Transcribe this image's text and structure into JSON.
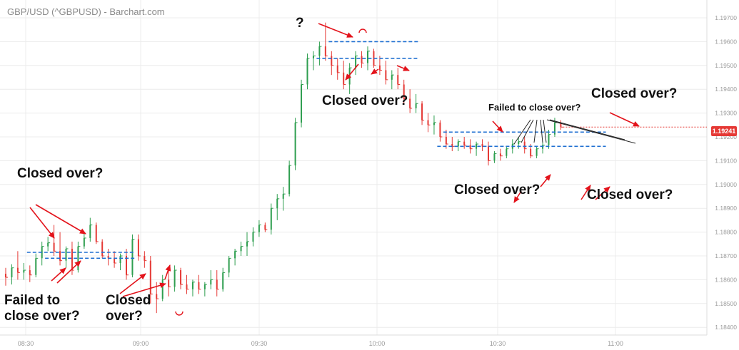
{
  "header": {
    "title": "GBP/USD (^GBPUSD) - Barchart.com"
  },
  "last_price": "1.19241",
  "colors": {
    "up": "#2e9e4f",
    "down": "#e53935",
    "level": "#1f6fd1",
    "arrow": "#e3131b",
    "grid": "#ececec"
  },
  "annotations": {
    "q": "?",
    "closed_over_top": "Closed over?",
    "failed_mid": "Failed to close over?",
    "closed_over_right_top": "Closed over?",
    "closed_over_mid": "Closed over?",
    "closed_over_right_bottom": "Closed over?",
    "closed_over_left": "Closed over?",
    "failed_left": "Failed to\nclose over?",
    "closed_left_bottom": "Closed\nover?"
  },
  "chart_data": {
    "type": "candlestick",
    "title": "GBP/USD (^GBPUSD) - Barchart.com",
    "x_tick_labels": [
      "08:30",
      "09:00",
      "09:30",
      "10:00",
      "10:30",
      "11:00"
    ],
    "y_tick_labels": [
      "1.19800",
      "1.19700",
      "1.19600",
      "1.19500",
      "1.19400",
      "1.19300",
      "1.19200",
      "1.19100",
      "1.19000",
      "1.18900",
      "1.18800",
      "1.18700",
      "1.18600",
      "1.18500",
      "1.18400"
    ],
    "ylim": [
      1.1838,
      1.1982
    ],
    "last_price": 1.19241,
    "grid": true,
    "candles": [
      {
        "o": 1.18625,
        "h": 1.1865,
        "l": 1.18575,
        "c": 1.1861
      },
      {
        "o": 1.1861,
        "h": 1.18665,
        "l": 1.1858,
        "c": 1.1865
      },
      {
        "o": 1.1865,
        "h": 1.1872,
        "l": 1.186,
        "c": 1.1863
      },
      {
        "o": 1.1863,
        "h": 1.1867,
        "l": 1.186,
        "c": 1.1864
      },
      {
        "o": 1.1864,
        "h": 1.1866,
        "l": 1.1859,
        "c": 1.1862
      },
      {
        "o": 1.1862,
        "h": 1.1871,
        "l": 1.1861,
        "c": 1.1869
      },
      {
        "o": 1.1869,
        "h": 1.1876,
        "l": 1.1866,
        "c": 1.1874
      },
      {
        "o": 1.1874,
        "h": 1.1878,
        "l": 1.1872,
        "c": 1.18755
      },
      {
        "o": 1.18755,
        "h": 1.1883,
        "l": 1.187,
        "c": 1.1872
      },
      {
        "o": 1.1872,
        "h": 1.188,
        "l": 1.1866,
        "c": 1.1868
      },
      {
        "o": 1.1868,
        "h": 1.1874,
        "l": 1.1865,
        "c": 1.1873
      },
      {
        "o": 1.1873,
        "h": 1.1876,
        "l": 1.1862,
        "c": 1.1864
      },
      {
        "o": 1.1864,
        "h": 1.1876,
        "l": 1.1863,
        "c": 1.1874
      },
      {
        "o": 1.1874,
        "h": 1.188,
        "l": 1.1873,
        "c": 1.18775
      },
      {
        "o": 1.18775,
        "h": 1.1886,
        "l": 1.1876,
        "c": 1.1883
      },
      {
        "o": 1.1883,
        "h": 1.1884,
        "l": 1.1875,
        "c": 1.1876
      },
      {
        "o": 1.1876,
        "h": 1.1877,
        "l": 1.1869,
        "c": 1.187
      },
      {
        "o": 1.187,
        "h": 1.1873,
        "l": 1.1866,
        "c": 1.1869
      },
      {
        "o": 1.1869,
        "h": 1.1872,
        "l": 1.1865,
        "c": 1.1867
      },
      {
        "o": 1.1867,
        "h": 1.1871,
        "l": 1.1864,
        "c": 1.187
      },
      {
        "o": 1.187,
        "h": 1.1873,
        "l": 1.186,
        "c": 1.1862
      },
      {
        "o": 1.1862,
        "h": 1.1879,
        "l": 1.1861,
        "c": 1.1877
      },
      {
        "o": 1.1877,
        "h": 1.1879,
        "l": 1.1868,
        "c": 1.187
      },
      {
        "o": 1.187,
        "h": 1.1872,
        "l": 1.1865,
        "c": 1.1868
      },
      {
        "o": 1.1868,
        "h": 1.187,
        "l": 1.185,
        "c": 1.1854
      },
      {
        "o": 1.1854,
        "h": 1.1859,
        "l": 1.1846,
        "c": 1.1852
      },
      {
        "o": 1.1852,
        "h": 1.1862,
        "l": 1.1851,
        "c": 1.186
      },
      {
        "o": 1.186,
        "h": 1.1864,
        "l": 1.1853,
        "c": 1.1857
      },
      {
        "o": 1.1857,
        "h": 1.1866,
        "l": 1.1855,
        "c": 1.1864
      },
      {
        "o": 1.1864,
        "h": 1.1865,
        "l": 1.1856,
        "c": 1.1858
      },
      {
        "o": 1.1858,
        "h": 1.1862,
        "l": 1.1854,
        "c": 1.1856
      },
      {
        "o": 1.1856,
        "h": 1.186,
        "l": 1.1853,
        "c": 1.1859
      },
      {
        "o": 1.1859,
        "h": 1.1862,
        "l": 1.1854,
        "c": 1.1856
      },
      {
        "o": 1.1856,
        "h": 1.1859,
        "l": 1.1853,
        "c": 1.1858
      },
      {
        "o": 1.1858,
        "h": 1.1864,
        "l": 1.1856,
        "c": 1.186
      },
      {
        "o": 1.186,
        "h": 1.1864,
        "l": 1.1853,
        "c": 1.1856
      },
      {
        "o": 1.1856,
        "h": 1.1865,
        "l": 1.1855,
        "c": 1.1863
      },
      {
        "o": 1.1863,
        "h": 1.187,
        "l": 1.1861,
        "c": 1.1869
      },
      {
        "o": 1.1869,
        "h": 1.1873,
        "l": 1.1866,
        "c": 1.1872
      },
      {
        "o": 1.1872,
        "h": 1.1876,
        "l": 1.187,
        "c": 1.1874
      },
      {
        "o": 1.1874,
        "h": 1.188,
        "l": 1.187,
        "c": 1.1876
      },
      {
        "o": 1.1876,
        "h": 1.1882,
        "l": 1.1874,
        "c": 1.188
      },
      {
        "o": 1.188,
        "h": 1.1885,
        "l": 1.1878,
        "c": 1.1883
      },
      {
        "o": 1.1883,
        "h": 1.1884,
        "l": 1.188,
        "c": 1.1881
      },
      {
        "o": 1.1881,
        "h": 1.1892,
        "l": 1.1879,
        "c": 1.189
      },
      {
        "o": 1.189,
        "h": 1.1896,
        "l": 1.1885,
        "c": 1.1894
      },
      {
        "o": 1.1894,
        "h": 1.1899,
        "l": 1.1889,
        "c": 1.1896
      },
      {
        "o": 1.1896,
        "h": 1.191,
        "l": 1.1895,
        "c": 1.1908
      },
      {
        "o": 1.1908,
        "h": 1.1928,
        "l": 1.1906,
        "c": 1.1926
      },
      {
        "o": 1.1926,
        "h": 1.1944,
        "l": 1.1924,
        "c": 1.1942
      },
      {
        "o": 1.1942,
        "h": 1.1955,
        "l": 1.194,
        "c": 1.1953
      },
      {
        "o": 1.1953,
        "h": 1.1956,
        "l": 1.1948,
        "c": 1.1954
      },
      {
        "o": 1.1954,
        "h": 1.196,
        "l": 1.195,
        "c": 1.1958
      },
      {
        "o": 1.1958,
        "h": 1.1968,
        "l": 1.1952,
        "c": 1.1954
      },
      {
        "o": 1.1954,
        "h": 1.1956,
        "l": 1.1946,
        "c": 1.195
      },
      {
        "o": 1.195,
        "h": 1.1953,
        "l": 1.1944,
        "c": 1.1947
      },
      {
        "o": 1.1947,
        "h": 1.1952,
        "l": 1.194,
        "c": 1.1942
      },
      {
        "o": 1.1942,
        "h": 1.1951,
        "l": 1.1938,
        "c": 1.1949
      },
      {
        "o": 1.1949,
        "h": 1.1956,
        "l": 1.1946,
        "c": 1.1954
      },
      {
        "o": 1.1954,
        "h": 1.1956,
        "l": 1.1949,
        "c": 1.1951
      },
      {
        "o": 1.1951,
        "h": 1.1958,
        "l": 1.1948,
        "c": 1.1956
      },
      {
        "o": 1.1956,
        "h": 1.1957,
        "l": 1.1949,
        "c": 1.195
      },
      {
        "o": 1.195,
        "h": 1.1954,
        "l": 1.1946,
        "c": 1.1948
      },
      {
        "o": 1.1948,
        "h": 1.1952,
        "l": 1.1942,
        "c": 1.1944
      },
      {
        "o": 1.1944,
        "h": 1.1948,
        "l": 1.194,
        "c": 1.1946
      },
      {
        "o": 1.1946,
        "h": 1.1949,
        "l": 1.194,
        "c": 1.1942
      },
      {
        "o": 1.1942,
        "h": 1.1944,
        "l": 1.1934,
        "c": 1.1936
      },
      {
        "o": 1.1936,
        "h": 1.194,
        "l": 1.193,
        "c": 1.1932
      },
      {
        "o": 1.1932,
        "h": 1.1938,
        "l": 1.193,
        "c": 1.1934
      },
      {
        "o": 1.1934,
        "h": 1.1935,
        "l": 1.1925,
        "c": 1.1927
      },
      {
        "o": 1.1927,
        "h": 1.193,
        "l": 1.1922,
        "c": 1.1925
      },
      {
        "o": 1.1925,
        "h": 1.1929,
        "l": 1.1921,
        "c": 1.1926
      },
      {
        "o": 1.1926,
        "h": 1.1927,
        "l": 1.1918,
        "c": 1.192
      },
      {
        "o": 1.192,
        "h": 1.1923,
        "l": 1.1915,
        "c": 1.1917
      },
      {
        "o": 1.1917,
        "h": 1.192,
        "l": 1.1914,
        "c": 1.1916
      },
      {
        "o": 1.1916,
        "h": 1.1919,
        "l": 1.1914,
        "c": 1.1918
      },
      {
        "o": 1.1918,
        "h": 1.192,
        "l": 1.1915,
        "c": 1.19165
      },
      {
        "o": 1.19165,
        "h": 1.1919,
        "l": 1.1913,
        "c": 1.1915
      },
      {
        "o": 1.1915,
        "h": 1.1918,
        "l": 1.1912,
        "c": 1.1917
      },
      {
        "o": 1.1917,
        "h": 1.1919,
        "l": 1.1914,
        "c": 1.1916
      },
      {
        "o": 1.1916,
        "h": 1.1918,
        "l": 1.1908,
        "c": 1.191
      },
      {
        "o": 1.191,
        "h": 1.1914,
        "l": 1.1909,
        "c": 1.1913
      },
      {
        "o": 1.1913,
        "h": 1.1915,
        "l": 1.191,
        "c": 1.1912
      },
      {
        "o": 1.1912,
        "h": 1.1916,
        "l": 1.1911,
        "c": 1.1915
      },
      {
        "o": 1.1915,
        "h": 1.1919,
        "l": 1.1913,
        "c": 1.1917
      },
      {
        "o": 1.1917,
        "h": 1.192,
        "l": 1.1915,
        "c": 1.1918
      },
      {
        "o": 1.1918,
        "h": 1.192,
        "l": 1.1913,
        "c": 1.1915
      },
      {
        "o": 1.1915,
        "h": 1.1917,
        "l": 1.1911,
        "c": 1.1912
      },
      {
        "o": 1.1912,
        "h": 1.1916,
        "l": 1.1911,
        "c": 1.1915
      },
      {
        "o": 1.1915,
        "h": 1.1918,
        "l": 1.1913,
        "c": 1.19165
      },
      {
        "o": 1.19165,
        "h": 1.1923,
        "l": 1.1915,
        "c": 1.1921
      },
      {
        "o": 1.1921,
        "h": 1.1928,
        "l": 1.192,
        "c": 1.1926
      },
      {
        "o": 1.1926,
        "h": 1.1927,
        "l": 1.1923,
        "c": 1.19241
      }
    ],
    "levels": [
      {
        "value": 1.18715,
        "from": 4,
        "to": 21
      },
      {
        "value": 1.1869,
        "from": 7,
        "to": 21
      },
      {
        "value": 1.196,
        "from": 54,
        "to": 68
      },
      {
        "value": 1.1953,
        "from": 52,
        "to": 68
      },
      {
        "value": 1.1922,
        "from": 73,
        "to": 99
      },
      {
        "value": 1.1916,
        "from": 72,
        "to": 99
      }
    ]
  }
}
